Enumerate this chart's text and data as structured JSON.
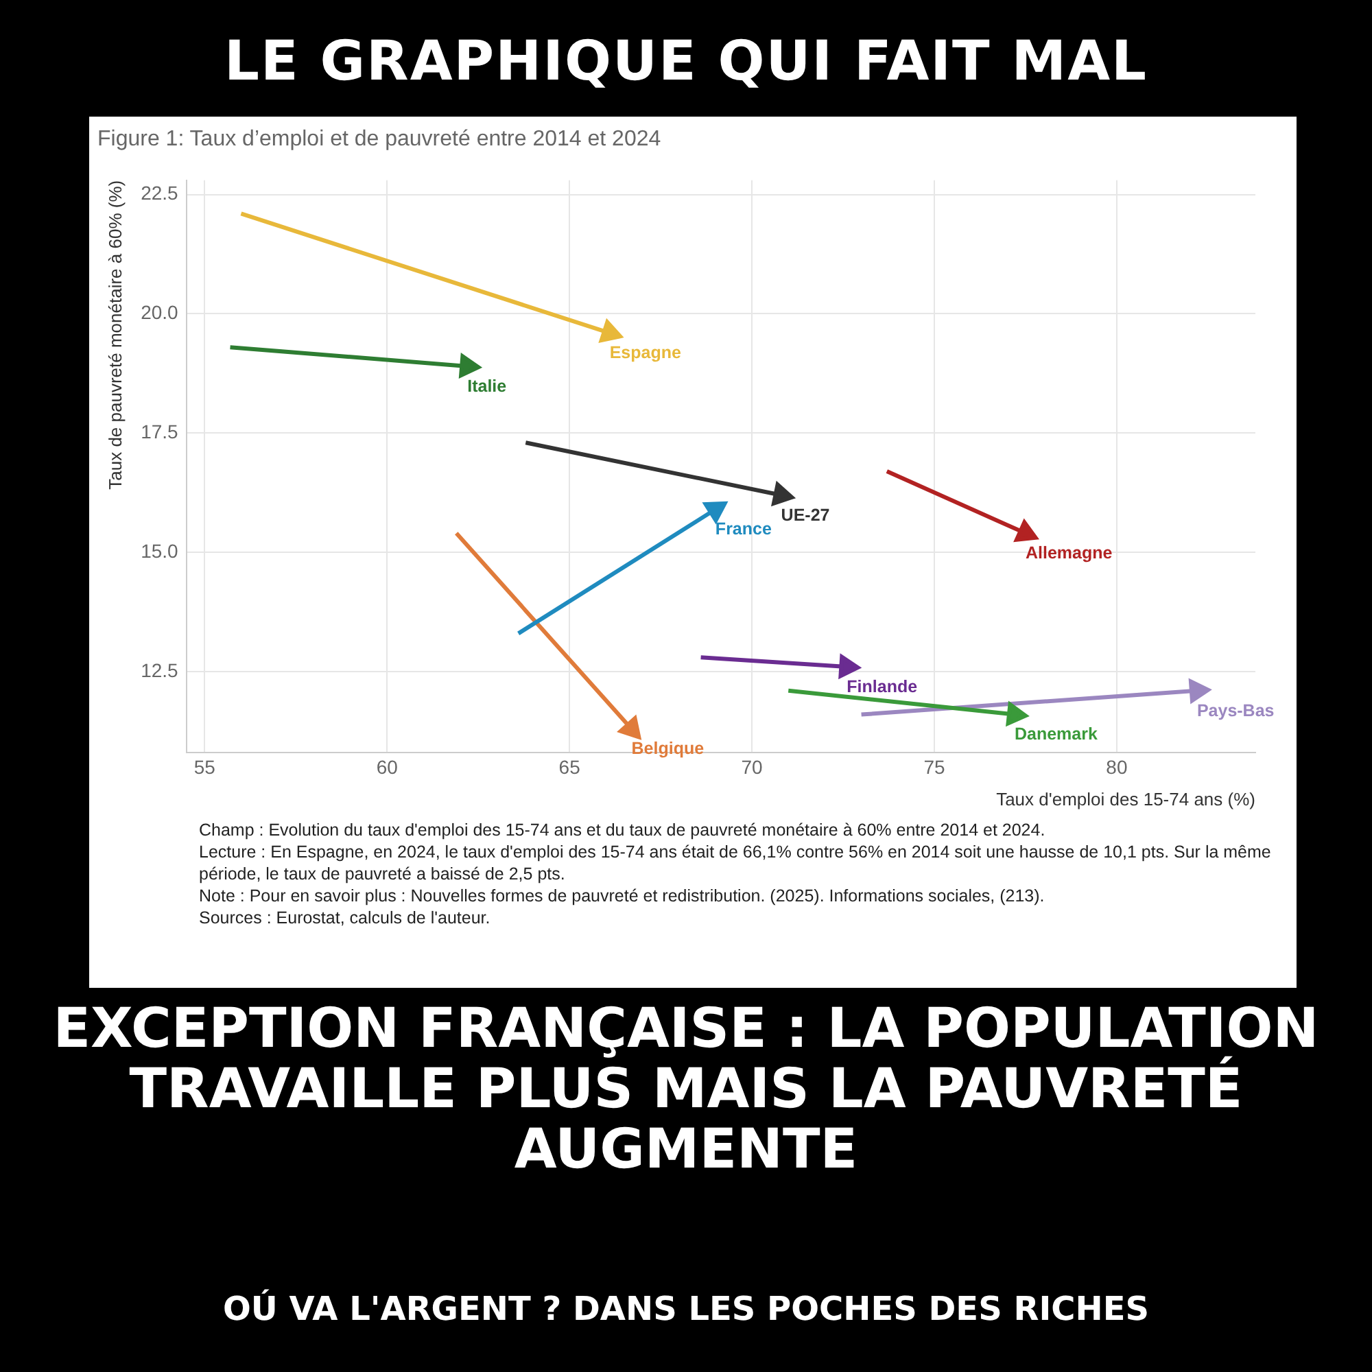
{
  "chart_data": {
    "type": "line",
    "title": "LE GRAPHIQUE QUI FAIT MAL",
    "subtitle": "Figure 1: Taux d’emploi et de pauvreté entre 2014 et 2024",
    "xlabel": "Taux d'emploi des 15-74 ans (%)",
    "ylabel": "Taux de pauvreté monétaire à 60% (%)",
    "xlim": [
      54.5,
      83.8
    ],
    "xticks": [
      55,
      60,
      65,
      70,
      75,
      80
    ],
    "ylim": [
      10.8,
      22.8
    ],
    "yticks": [
      {
        "value": 12.5,
        "label": "12.5"
      },
      {
        "value": 15,
        "label": "15.0"
      },
      {
        "value": 17.5,
        "label": "17.5"
      },
      {
        "value": 20,
        "label": "20.0"
      },
      {
        "value": 22.5,
        "label": "22.5"
      }
    ],
    "grid": true,
    "legend": false,
    "marker": "triangle",
    "line_style": "solid",
    "series": [
      {
        "name": "Espagne",
        "color": "#e8b83a",
        "x": [
          56,
          66.1
        ],
        "values": [
          22.1,
          19.6
        ]
      },
      {
        "name": "Italie",
        "color": "#2e7d32",
        "x": [
          55.7,
          62.2
        ],
        "values": [
          19.3,
          18.9
        ]
      },
      {
        "name": "UE-27",
        "color": "#333333",
        "x": [
          63.8,
          70.8
        ],
        "values": [
          17.3,
          16.2
        ]
      },
      {
        "name": "France",
        "color": "#1f8bbf",
        "x": [
          63.6,
          69.0
        ],
        "values": [
          13.3,
          15.9
        ]
      },
      {
        "name": "Belgique",
        "color": "#e07b3a",
        "x": [
          61.9,
          66.7
        ],
        "values": [
          15.4,
          11.3
        ]
      },
      {
        "name": "Allemagne",
        "color": "#b22222",
        "x": [
          73.7,
          77.5
        ],
        "values": [
          16.7,
          15.4
        ]
      },
      {
        "name": "Finlande",
        "color": "#6a2c91",
        "x": [
          68.6,
          72.6
        ],
        "values": [
          12.8,
          12.6
        ]
      },
      {
        "name": "Danemark",
        "color": "#3a9a3a",
        "x": [
          71.0,
          77.2
        ],
        "values": [
          12.1,
          11.6
        ]
      },
      {
        "name": "Pays-Bas",
        "color": "#9b87c0",
        "x": [
          73.0,
          82.2
        ],
        "values": [
          11.6,
          12.1
        ]
      }
    ],
    "annotations": [
      "Champ : Evolution du taux d'emploi des 15-74 ans et du taux de pauvreté monétaire à 60% entre 2014 et 2024.",
      "Lecture : En Espagne, en 2024, le taux d'emploi des 15-74 ans était de 66,1% contre 56% en 2014 soit une hausse de 10,1 pts. Sur la même période, le taux de pauvreté a baissé de 2,5 pts.",
      "Note : Pour en savoir plus : Nouvelles formes de pauvreté et redistribution. (2025). Informations sociales, (213).",
      "Sources : Eurostat, calculs de l'auteur.",
      "EXCEPTION FRANÇAISE : LA POPULATION TRAVAILLE PLUS MAIS LA PAUVRETÉ AUGMENTE",
      "OÚ VA L'ARGENT ? DANS LES POCHES DES RICHES"
    ]
  }
}
